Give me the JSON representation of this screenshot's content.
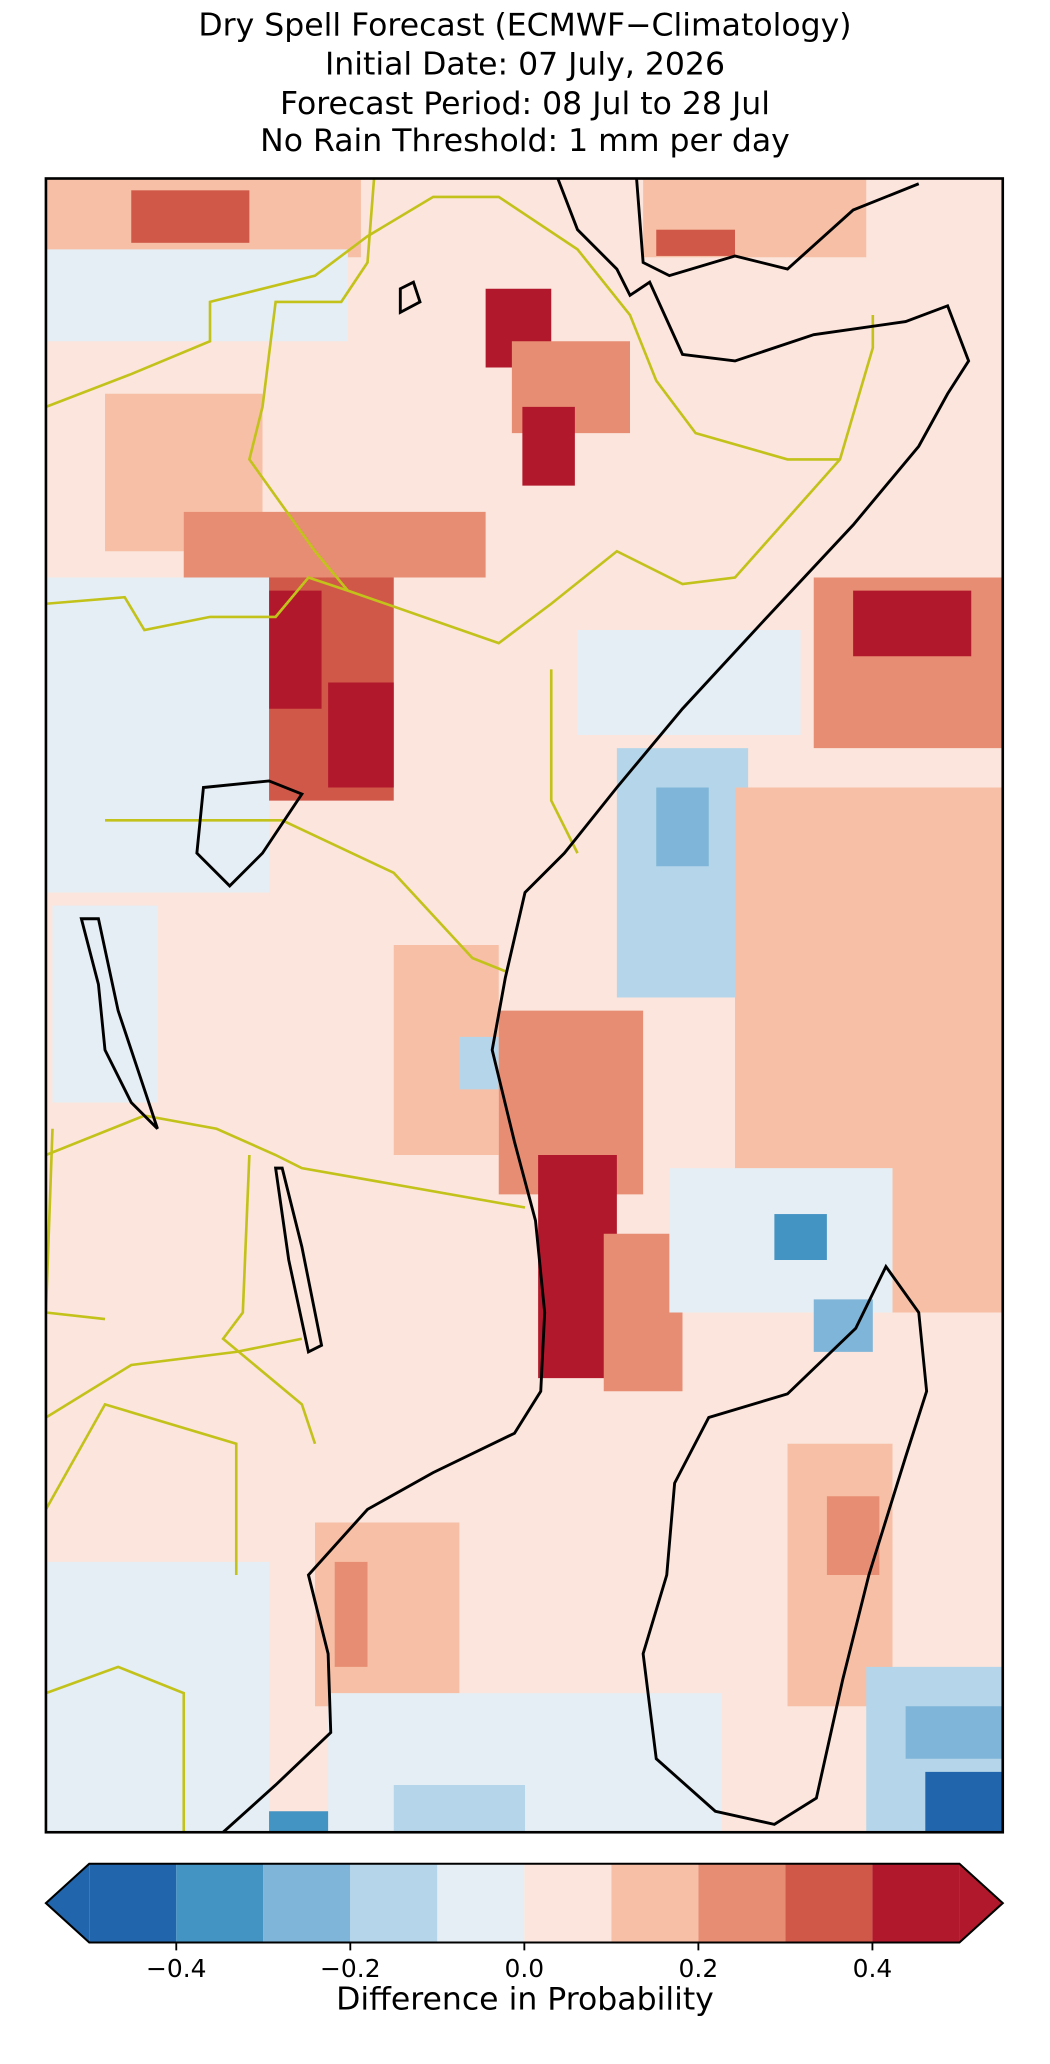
{
  "map": {
    "title": [
      "Dry Spell Forecast (ECMWF−Climatology)",
      "Initial Date: 07 July, 2026",
      "Forecast Period: 08 Jul to 28 Jul",
      "No Rain Threshold: 1 mm per day"
    ],
    "colorbar": {
      "label": "Difference in Probability",
      "bounds": [
        -0.5,
        -0.4,
        -0.3,
        -0.2,
        -0.1,
        0,
        0.1,
        0.2,
        0.3,
        0.4,
        0.5
      ],
      "colors": [
        "#2166ac",
        "#4393c3",
        "#7fb5d8",
        "#b5d6ea",
        "#e5eef4",
        "#fbe5dc",
        "#f7c0a6",
        "#e78d73",
        "#d05849",
        "#b2182b"
      ],
      "extend": "both",
      "ticks": [
        {
          "value": -0.4,
          "label": "−0.4"
        },
        {
          "value": -0.2,
          "label": "−0.2"
        },
        {
          "value": 0,
          "label": "0.0"
        },
        0.2,
        0.4
      ]
    }
  }
}
